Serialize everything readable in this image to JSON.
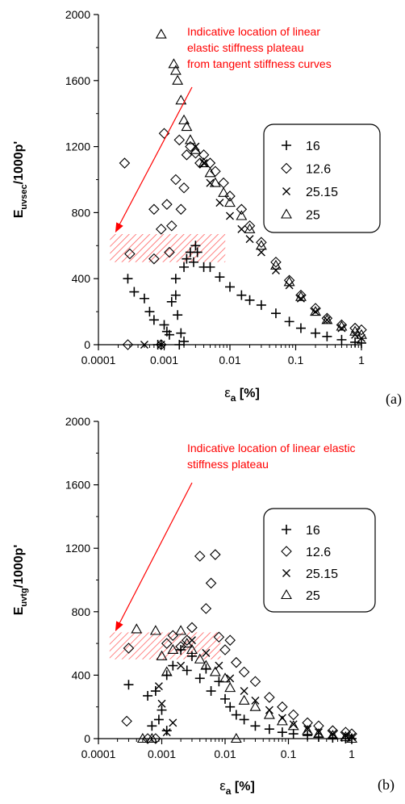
{
  "chart_data": [
    {
      "type": "scatter",
      "panel_label": "(a)",
      "xlabel_symbol": "ε",
      "xlabel_sub": "a",
      "xlabel_unit": " [%]",
      "ylabel_main": "E",
      "ylabel_sub": "uvsec",
      "ylabel_rest": "/1000p'",
      "x_scale": "log",
      "xlim": [
        0.0001,
        1
      ],
      "ylim": [
        0,
        2000
      ],
      "x_ticks": [
        "0.0001",
        "0.001",
        "0.01",
        "0.1",
        "1"
      ],
      "y_ticks": [
        "0",
        "400",
        "800",
        "1200",
        "1600",
        "2000"
      ],
      "annotation": [
        "Indicative location of linear",
        "elastic stiffness plateau",
        "from tangent stiffness curves"
      ],
      "plateau_band": {
        "x": [
          0.00015,
          0.0085
        ],
        "y": [
          500,
          670
        ]
      },
      "legend": {
        "position": "top-right",
        "entries": [
          {
            "label": "16",
            "marker": "plus"
          },
          {
            "label": "12.6",
            "marker": "diamond"
          },
          {
            "label": "25.15",
            "marker": "cross"
          },
          {
            "label": "25",
            "marker": "triangle"
          }
        ]
      },
      "series": [
        {
          "name": "16",
          "marker": "plus",
          "points": [
            [
              0.00028,
              400
            ],
            [
              0.00035,
              320
            ],
            [
              0.0005,
              280
            ],
            [
              0.0006,
              200
            ],
            [
              0.0007,
              150
            ],
            [
              0.001,
              120
            ],
            [
              0.0011,
              80
            ],
            [
              0.0012,
              60
            ],
            [
              0.0013,
              260
            ],
            [
              0.0015,
              300
            ],
            [
              0.0016,
              180
            ],
            [
              0.0018,
              70
            ],
            [
              0.002,
              20
            ],
            [
              0.0015,
              400
            ],
            [
              0.002,
              470
            ],
            [
              0.0022,
              520
            ],
            [
              0.0025,
              560
            ],
            [
              0.003,
              600
            ],
            [
              0.0028,
              500
            ],
            [
              0.004,
              470
            ],
            [
              0.0032,
              560
            ],
            [
              0.005,
              470
            ],
            [
              0.007,
              410
            ],
            [
              0.01,
              350
            ],
            [
              0.015,
              300
            ],
            [
              0.02,
              270
            ],
            [
              0.03,
              240
            ],
            [
              0.05,
              190
            ],
            [
              0.08,
              140
            ],
            [
              0.12,
              100
            ],
            [
              0.2,
              70
            ],
            [
              0.3,
              50
            ],
            [
              0.5,
              30
            ],
            [
              0.8,
              15
            ],
            [
              1.0,
              10
            ],
            [
              0.0009,
              0
            ],
            [
              0.0017,
              0
            ],
            [
              0.0008,
              0
            ]
          ]
        },
        {
          "name": "12.6",
          "marker": "diamond",
          "points": [
            [
              0.00025,
              1100
            ],
            [
              0.0003,
              550
            ],
            [
              0.00028,
              0
            ],
            [
              0.0007,
              820
            ],
            [
              0.0007,
              520
            ],
            [
              0.0009,
              700
            ],
            [
              0.001,
              1280
            ],
            [
              0.0011,
              850
            ],
            [
              0.0012,
              560
            ],
            [
              0.0013,
              720
            ],
            [
              0.0015,
              1000
            ],
            [
              0.0017,
              1240
            ],
            [
              0.0018,
              820
            ],
            [
              0.002,
              950
            ],
            [
              0.0022,
              1150
            ],
            [
              0.0025,
              1200
            ],
            [
              0.003,
              1160
            ],
            [
              0.0035,
              1100
            ],
            [
              0.004,
              1150
            ],
            [
              0.005,
              1100
            ],
            [
              0.006,
              1050
            ],
            [
              0.008,
              980
            ],
            [
              0.01,
              900
            ],
            [
              0.015,
              820
            ],
            [
              0.02,
              720
            ],
            [
              0.03,
              620
            ],
            [
              0.05,
              500
            ],
            [
              0.08,
              390
            ],
            [
              0.12,
              300
            ],
            [
              0.2,
              220
            ],
            [
              0.3,
              160
            ],
            [
              0.5,
              120
            ],
            [
              0.8,
              100
            ],
            [
              1.0,
              90
            ],
            [
              0.0009,
              0
            ]
          ]
        },
        {
          "name": "25.15",
          "marker": "cross",
          "points": [
            [
              0.0009,
              0
            ],
            [
              0.0005,
              0
            ],
            [
              0.003,
              1200
            ],
            [
              0.004,
              1100
            ],
            [
              0.005,
              980
            ],
            [
              0.007,
              860
            ],
            [
              0.01,
              780
            ],
            [
              0.015,
              700
            ],
            [
              0.02,
              640
            ],
            [
              0.03,
              560
            ],
            [
              0.05,
              450
            ],
            [
              0.08,
              360
            ],
            [
              0.12,
              280
            ],
            [
              0.2,
              200
            ],
            [
              0.3,
              150
            ],
            [
              0.5,
              100
            ],
            [
              0.8,
              60
            ],
            [
              1.0,
              40
            ]
          ]
        },
        {
          "name": "25",
          "marker": "triangle",
          "points": [
            [
              0.0009,
              1880
            ],
            [
              0.0014,
              1700
            ],
            [
              0.0015,
              1660
            ],
            [
              0.0016,
              1600
            ],
            [
              0.0018,
              1480
            ],
            [
              0.002,
              1360
            ],
            [
              0.0022,
              1320
            ],
            [
              0.0025,
              1240
            ],
            [
              0.003,
              1180
            ],
            [
              0.004,
              1100
            ],
            [
              0.005,
              1040
            ],
            [
              0.006,
              980
            ],
            [
              0.008,
              920
            ],
            [
              0.01,
              860
            ],
            [
              0.015,
              780
            ],
            [
              0.02,
              700
            ],
            [
              0.03,
              600
            ],
            [
              0.05,
              480
            ],
            [
              0.08,
              380
            ],
            [
              0.12,
              290
            ],
            [
              0.2,
              200
            ],
            [
              0.3,
              150
            ],
            [
              0.5,
              110
            ],
            [
              0.8,
              80
            ],
            [
              1.0,
              60
            ]
          ]
        }
      ]
    },
    {
      "type": "scatter",
      "panel_label": "(b)",
      "xlabel_symbol": "ε",
      "xlabel_sub": "a",
      "xlabel_unit": " [%]",
      "ylabel_main": "E",
      "ylabel_sub": "uvtg",
      "ylabel_rest": "/1000p'",
      "x_scale": "log",
      "xlim": [
        0.0001,
        1
      ],
      "ylim": [
        0,
        2000
      ],
      "x_ticks": [
        "0.0001",
        "0.001",
        "0.01",
        "0.1",
        "1"
      ],
      "y_ticks": [
        "0",
        "400",
        "800",
        "1200",
        "1600",
        "2000"
      ],
      "annotation": [
        "Indicative location of linear elastic",
        "stiffness plateau"
      ],
      "plateau_band": {
        "x": [
          0.00015,
          0.0085
        ],
        "y": [
          500,
          670
        ]
      },
      "legend": {
        "position": "top-right",
        "entries": [
          {
            "label": "16",
            "marker": "plus"
          },
          {
            "label": "12.6",
            "marker": "diamond"
          },
          {
            "label": "25.15",
            "marker": "cross"
          },
          {
            "label": "25",
            "marker": "triangle"
          }
        ]
      },
      "series": [
        {
          "name": "16",
          "marker": "plus",
          "points": [
            [
              0.0003,
              340
            ],
            [
              0.0006,
              270
            ],
            [
              0.0008,
              300
            ],
            [
              0.0009,
              120
            ],
            [
              0.001,
              180
            ],
            [
              0.0012,
              400
            ],
            [
              0.0015,
              460
            ],
            [
              0.002,
              560
            ],
            [
              0.0025,
              430
            ],
            [
              0.003,
              520
            ],
            [
              0.004,
              380
            ],
            [
              0.005,
              440
            ],
            [
              0.006,
              300
            ],
            [
              0.008,
              360
            ],
            [
              0.01,
              250
            ],
            [
              0.012,
              200
            ],
            [
              0.015,
              150
            ],
            [
              0.02,
              120
            ],
            [
              0.03,
              80
            ],
            [
              0.05,
              60
            ],
            [
              0.08,
              40
            ],
            [
              0.12,
              30
            ],
            [
              0.2,
              20
            ],
            [
              0.3,
              10
            ],
            [
              0.5,
              5
            ],
            [
              0.8,
              0
            ],
            [
              1.0,
              0
            ],
            [
              0.0007,
              80
            ],
            [
              0.0012,
              50
            ]
          ]
        },
        {
          "name": "12.6",
          "marker": "diamond",
          "points": [
            [
              0.00028,
              110
            ],
            [
              0.0003,
              570
            ],
            [
              0.0006,
              0
            ],
            [
              0.0008,
              0
            ],
            [
              0.0012,
              600
            ],
            [
              0.0015,
              650
            ],
            [
              0.002,
              580
            ],
            [
              0.0025,
              620
            ],
            [
              0.003,
              700
            ],
            [
              0.004,
              1150
            ],
            [
              0.005,
              820
            ],
            [
              0.006,
              980
            ],
            [
              0.007,
              1160
            ],
            [
              0.008,
              640
            ],
            [
              0.01,
              560
            ],
            [
              0.012,
              620
            ],
            [
              0.015,
              480
            ],
            [
              0.02,
              420
            ],
            [
              0.03,
              360
            ],
            [
              0.05,
              260
            ],
            [
              0.08,
              200
            ],
            [
              0.12,
              150
            ],
            [
              0.2,
              100
            ],
            [
              0.3,
              80
            ],
            [
              0.5,
              50
            ],
            [
              0.8,
              40
            ],
            [
              1.0,
              30
            ]
          ]
        },
        {
          "name": "25.15",
          "marker": "cross",
          "points": [
            [
              0.0009,
              330
            ],
            [
              0.001,
              220
            ],
            [
              0.0012,
              40
            ],
            [
              0.0015,
              100
            ],
            [
              0.002,
              460
            ],
            [
              0.003,
              620
            ],
            [
              0.005,
              540
            ],
            [
              0.008,
              460
            ],
            [
              0.012,
              380
            ],
            [
              0.02,
              300
            ],
            [
              0.03,
              240
            ],
            [
              0.05,
              180
            ],
            [
              0.08,
              130
            ],
            [
              0.12,
              90
            ],
            [
              0.2,
              60
            ],
            [
              0.3,
              40
            ],
            [
              0.5,
              30
            ],
            [
              0.8,
              20
            ],
            [
              1.0,
              10
            ]
          ]
        },
        {
          "name": "25",
          "marker": "triangle",
          "points": [
            [
              0.0004,
              690
            ],
            [
              0.0005,
              0
            ],
            [
              0.0007,
              0
            ],
            [
              0.0008,
              680
            ],
            [
              0.001,
              520
            ],
            [
              0.0012,
              420
            ],
            [
              0.0015,
              560
            ],
            [
              0.002,
              680
            ],
            [
              0.0025,
              600
            ],
            [
              0.003,
              560
            ],
            [
              0.004,
              500
            ],
            [
              0.005,
              460
            ],
            [
              0.007,
              420
            ],
            [
              0.01,
              380
            ],
            [
              0.012,
              320
            ],
            [
              0.015,
              0
            ],
            [
              0.02,
              240
            ],
            [
              0.03,
              200
            ],
            [
              0.05,
              150
            ],
            [
              0.08,
              110
            ],
            [
              0.12,
              80
            ],
            [
              0.2,
              50
            ],
            [
              0.3,
              30
            ],
            [
              0.5,
              20
            ],
            [
              0.8,
              10
            ],
            [
              1.0,
              0
            ]
          ]
        }
      ]
    }
  ]
}
